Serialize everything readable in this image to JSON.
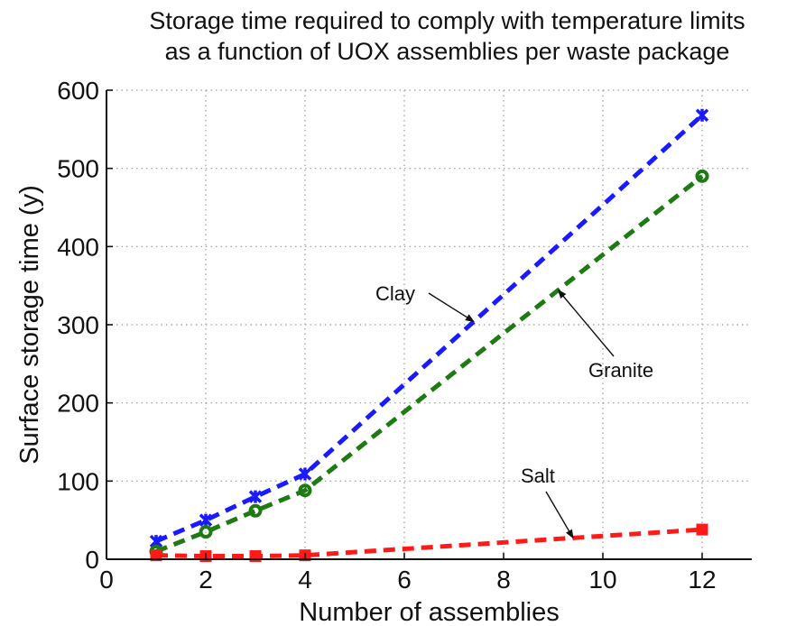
{
  "chart_data": {
    "type": "line",
    "title": [
      "Storage time required to comply with temperature limits",
      "as a function of UOX assemblies per waste package"
    ],
    "xlabel": "Number of assemblies",
    "ylabel": "Surface storage time (y)",
    "xlim": [
      0,
      13
    ],
    "ylim": [
      0,
      600
    ],
    "xticks": [
      0,
      2,
      4,
      6,
      8,
      10,
      12
    ],
    "yticks": [
      0,
      100,
      200,
      300,
      400,
      500,
      600
    ],
    "grid": true,
    "series": [
      {
        "name": "Clay",
        "color": "#1a1aff",
        "marker": "x",
        "x": [
          1,
          2,
          3,
          4,
          12
        ],
        "y": [
          23,
          50,
          80,
          109,
          568
        ]
      },
      {
        "name": "Granite",
        "color": "#1e7a12",
        "marker": "o",
        "x": [
          1,
          2,
          3,
          4,
          12
        ],
        "y": [
          10,
          35,
          62,
          88,
          490
        ]
      },
      {
        "name": "Salt",
        "color": "#ff1a1a",
        "marker": "s",
        "x": [
          1,
          2,
          3,
          4,
          12
        ],
        "y": [
          5,
          4,
          4,
          5,
          38
        ]
      }
    ],
    "annotations": [
      {
        "text": "Clay",
        "series": "Clay"
      },
      {
        "text": "Granite",
        "series": "Granite"
      },
      {
        "text": "Salt",
        "series": "Salt"
      }
    ]
  }
}
